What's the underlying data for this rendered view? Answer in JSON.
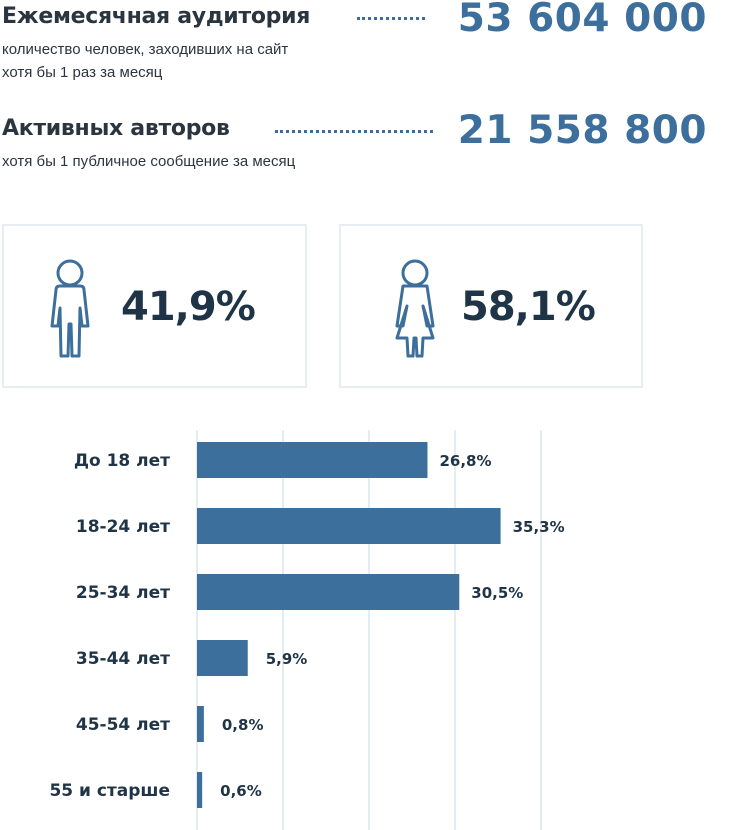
{
  "stats": {
    "monthly": {
      "title": "Ежемесячная аудитория",
      "subtitle_lines": [
        "количество человек, заходивших на сайт",
        "хотя бы 1 раз за месяц"
      ],
      "value": "53 604 000"
    },
    "authors": {
      "title": "Активных авторов",
      "subtitle_lines": [
        "хотя бы 1 публичное сообщение за месяц"
      ],
      "value": "21 558 800"
    }
  },
  "gender": {
    "male": {
      "icon": "male-person-icon",
      "value": "41,9%"
    },
    "female": {
      "icon": "female-person-icon",
      "value": "58,1%"
    }
  },
  "colors": {
    "bar": "#3d6f9c",
    "value_text": "#3d6f9c",
    "dark_text": "#1f3446",
    "grid": "#dbe6ef",
    "card_border": "#e6eef4",
    "dots": "#3b6e9a"
  },
  "chart_data": {
    "type": "bar",
    "orientation": "horizontal",
    "categories": [
      "До 18 лет",
      "18-24 лет",
      "25-34 лет",
      "35-44 лет",
      "45-54 лет",
      "55 и старше"
    ],
    "values": [
      26.8,
      35.3,
      30.5,
      5.9,
      0.8,
      0.6
    ],
    "value_labels": [
      "26,8%",
      "35,3%",
      "30,5%",
      "5,9%",
      "0,8%",
      "0,6%"
    ],
    "xlim": [
      0,
      40
    ],
    "grid": true,
    "title": "",
    "xlabel": "",
    "ylabel": ""
  }
}
